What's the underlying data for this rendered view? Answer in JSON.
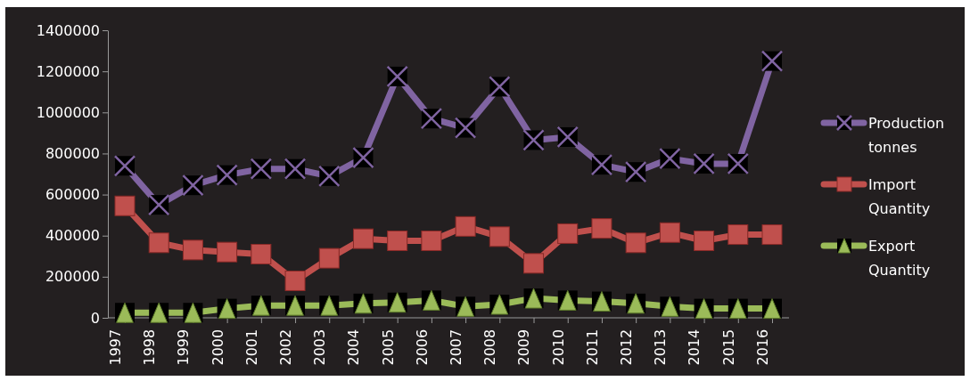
{
  "chart_data": {
    "type": "line",
    "categories": [
      "1997",
      "1998",
      "1999",
      "2000",
      "2001",
      "2002",
      "2003",
      "2004",
      "2005",
      "2006",
      "2007",
      "2008",
      "2009",
      "2010",
      "2011",
      "2012",
      "2013",
      "2014",
      "2015",
      "2016"
    ],
    "series": [
      {
        "name": "Production tonnes",
        "color": "#8064a2",
        "marker": "cross",
        "values": [
          740000,
          550000,
          645000,
          695000,
          725000,
          725000,
          690000,
          780000,
          1175000,
          970000,
          925000,
          1125000,
          865000,
          880000,
          745000,
          710000,
          775000,
          750000,
          750000,
          1250000
        ]
      },
      {
        "name": "Import Quantity",
        "color": "#c0504d",
        "marker": "square",
        "values": [
          545000,
          365000,
          330000,
          320000,
          310000,
          180000,
          290000,
          385000,
          375000,
          375000,
          445000,
          395000,
          265000,
          410000,
          435000,
          365000,
          415000,
          375000,
          405000,
          405000
        ]
      },
      {
        "name": "Export Quantity",
        "color": "#9bbb59",
        "marker": "triangle",
        "values": [
          25000,
          25000,
          25000,
          45000,
          60000,
          60000,
          60000,
          70000,
          75000,
          85000,
          55000,
          65000,
          95000,
          85000,
          80000,
          70000,
          55000,
          45000,
          45000,
          45000
        ]
      }
    ],
    "ylim": [
      0,
      1400000
    ],
    "yticks": [
      0,
      200000,
      400000,
      600000,
      800000,
      1000000,
      1200000,
      1400000
    ],
    "grid": false,
    "legend": "right",
    "line_style": "solid"
  }
}
